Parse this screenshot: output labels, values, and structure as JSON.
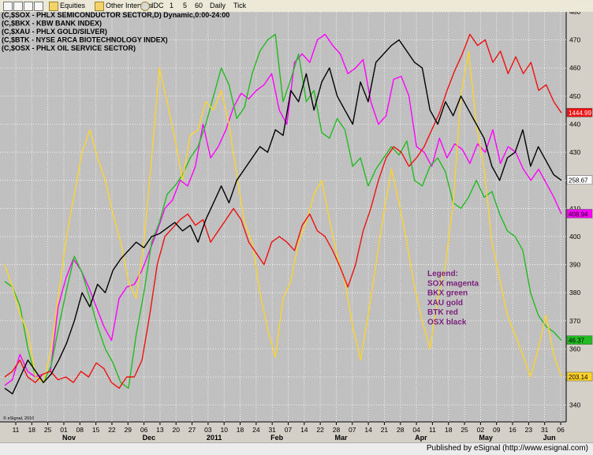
{
  "toolbar": {
    "items": [
      {
        "name": "equities-dropdown",
        "label": "Equities",
        "icon": "folder-icon"
      },
      {
        "name": "other-intervals-dropdown",
        "label": "Other Intervals",
        "icon": "folder-icon"
      },
      {
        "name": "interval-idc",
        "label": "IDC",
        "icon": "clock-icon"
      },
      {
        "name": "interval-1",
        "label": "1"
      },
      {
        "name": "interval-5",
        "label": "5"
      },
      {
        "name": "interval-60",
        "label": "60"
      },
      {
        "name": "interval-daily",
        "label": "Daily"
      },
      {
        "name": "interval-tick",
        "label": "Tick"
      }
    ]
  },
  "chart_headers": [
    "(C,$SOX - PHLX SEMICONDUCTOR SECTOR,D) Dynamic,0:00-24:00",
    "(C,$BKX - KBW BANK INDEX)",
    "(C,$XAU - PHLX GOLD/SILVER)",
    "(C,$BTK - NYSE ARCA BIOTECHNOLOGY INDEX)",
    "(C,$OSX - PHLX OIL SERVICE SECTOR)"
  ],
  "copyright": "© eSignal, 2010",
  "status_text": "Published by eSignal (http://www.esignal.com)",
  "legend_lines": [
    "Legend:",
    "SOX magenta",
    "BKX green",
    "XAU gold",
    "BTK red",
    "OSX black"
  ],
  "colors": {
    "background": "#c0c0c0",
    "grid": "#ffffff",
    "sox": "#ff00ff",
    "bkx": "#22bb22",
    "xau": "#ffd42a",
    "btk": "#ee1111",
    "osx": "#000000",
    "legend": "#7a1f7a"
  },
  "chart_data": {
    "type": "line",
    "ylim": [
      334,
      480
    ],
    "y_ticks": [
      340,
      350,
      360,
      370,
      380,
      390,
      400,
      410,
      420,
      430,
      440,
      450,
      460,
      470,
      480
    ],
    "x_tick_labels": [
      "11",
      "18",
      "25",
      "01",
      "08",
      "15",
      "22",
      "29",
      "06",
      "13",
      "20",
      "27",
      "03",
      "10",
      "18",
      "24",
      "31",
      "07",
      "14",
      "22",
      "28",
      "07",
      "14",
      "21",
      "28",
      "04",
      "11",
      "18",
      "25",
      "02",
      "09",
      "16",
      "23",
      "31",
      "06"
    ],
    "month_labels": [
      {
        "label": "Nov",
        "index": 3
      },
      {
        "label": "Dec",
        "index": 8
      },
      {
        "label": "2011",
        "index": 12
      },
      {
        "label": "Feb",
        "index": 16
      },
      {
        "label": "Mar",
        "index": 20
      },
      {
        "label": "Apr",
        "index": 25
      },
      {
        "label": "May",
        "index": 29
      },
      {
        "label": "Jun",
        "index": 33
      }
    ],
    "last_labels": {
      "btk": "1444.99",
      "osx": "258.67",
      "sox": "408.94",
      "bkx": "46.37",
      "xau": "203.14"
    },
    "series": [
      {
        "key": "sox",
        "name": "SOX magenta",
        "values": [
          347,
          349,
          358,
          352,
          350,
          351,
          352,
          375,
          385,
          392,
          388,
          382,
          375,
          368,
          363,
          378,
          382,
          383,
          388,
          395,
          402,
          410,
          413,
          420,
          418,
          425,
          440,
          428,
          432,
          438,
          446,
          451,
          449,
          452,
          454,
          458,
          445,
          440,
          462,
          465,
          462,
          470,
          472,
          468,
          465,
          458,
          460,
          463,
          448,
          440,
          443,
          456,
          457,
          450,
          432,
          430,
          425,
          435,
          428,
          433,
          431,
          426,
          433,
          430,
          438,
          426,
          432,
          430,
          424,
          420,
          424,
          419,
          414,
          408
        ]
      },
      {
        "key": "bkx",
        "name": "BKX green",
        "values": [
          384,
          382,
          375,
          360,
          350,
          348,
          354,
          368,
          381,
          393,
          387,
          378,
          368,
          360,
          355,
          348,
          346,
          365,
          380,
          398,
          405,
          415,
          418,
          422,
          428,
          432,
          440,
          450,
          460,
          454,
          442,
          446,
          458,
          466,
          470,
          472,
          448,
          456,
          465,
          448,
          452,
          437,
          435,
          442,
          438,
          425,
          428,
          418,
          424,
          428,
          432,
          429,
          434,
          420,
          418,
          425,
          428,
          423,
          412,
          410,
          414,
          420,
          414,
          416,
          408,
          402,
          400,
          395,
          380,
          372,
          368,
          366,
          363
        ]
      },
      {
        "key": "xau",
        "name": "XAU gold",
        "values": [
          390,
          382,
          372,
          366,
          350,
          348,
          360,
          380,
          400,
          415,
          430,
          438,
          428,
          420,
          408,
          398,
          384,
          378,
          398,
          428,
          460,
          448,
          435,
          420,
          436,
          438,
          448,
          445,
          452,
          440,
          422,
          405,
          398,
          380,
          367,
          357,
          378,
          384,
          398,
          405,
          415,
          420,
          406,
          393,
          384,
          368,
          356,
          372,
          390,
          408,
          424,
          412,
          398,
          382,
          370,
          360,
          378,
          390,
          412,
          450,
          466,
          440,
          424,
          398,
          385,
          372,
          365,
          358,
          350,
          360,
          372,
          358,
          350
        ]
      },
      {
        "key": "btk",
        "name": "BTK red",
        "values": [
          350,
          352,
          356,
          350,
          348,
          351,
          352,
          349,
          350,
          348,
          352,
          350,
          355,
          353,
          348,
          346,
          350,
          350,
          356,
          372,
          390,
          400,
          403,
          406,
          408,
          404,
          406,
          398,
          402,
          406,
          410,
          406,
          398,
          394,
          390,
          398,
          400,
          398,
          395,
          404,
          408,
          402,
          400,
          395,
          389,
          382,
          390,
          402,
          410,
          420,
          428,
          432,
          430,
          425,
          428,
          432,
          438,
          444,
          452,
          459,
          465,
          472,
          468,
          470,
          462,
          466,
          458,
          464,
          458,
          462,
          452,
          454,
          448,
          444
        ]
      },
      {
        "key": "osx",
        "name": "OSX black",
        "values": [
          346,
          344,
          350,
          356,
          352,
          348,
          351,
          356,
          362,
          370,
          380,
          375,
          383,
          380,
          388,
          392,
          395,
          398,
          396,
          400,
          401,
          403,
          405,
          402,
          404,
          398,
          406,
          412,
          418,
          412,
          420,
          424,
          428,
          432,
          430,
          438,
          436,
          452,
          448,
          458,
          445,
          455,
          460,
          450,
          445,
          440,
          455,
          448,
          462,
          465,
          468,
          470,
          466,
          462,
          460,
          445,
          440,
          448,
          443,
          450,
          445,
          440,
          435,
          425,
          420,
          428,
          430,
          438,
          425,
          432,
          427,
          422,
          420
        ]
      }
    ]
  }
}
